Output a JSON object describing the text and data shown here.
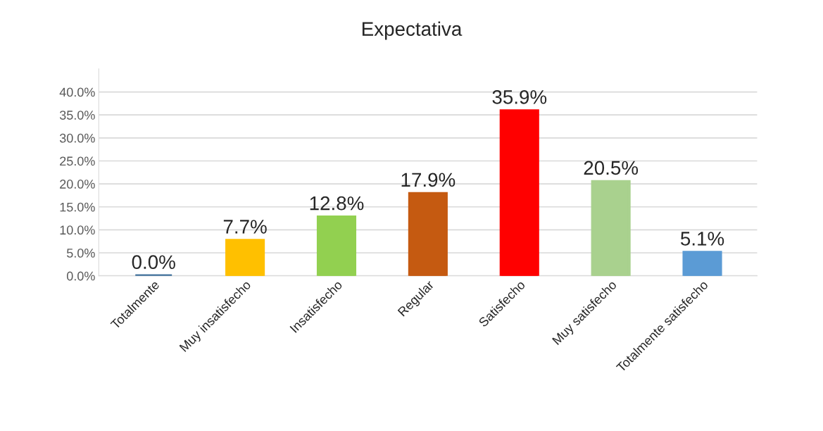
{
  "chart_data": {
    "type": "bar",
    "title": "Expectativa",
    "categories": [
      "Totalmente",
      "Muy insatisfecho",
      "Insatisfecho",
      "Regular",
      "Satisfecho",
      "Muy satisfecho",
      "Totalmente satisfecho"
    ],
    "values": [
      0,
      7.7,
      12.8,
      17.9,
      35.9,
      20.5,
      5.1
    ],
    "value_labels": [
      "0.0%",
      "7.7%",
      "12.8%",
      "17.9%",
      "35.9%",
      "20.5%",
      "5.1%"
    ],
    "colors": [
      "#41719c",
      "#ffc000",
      "#92d050",
      "#c55a11",
      "#ff0000",
      "#a9d18e",
      "#5b9bd5"
    ],
    "ylim": [
      0,
      45
    ],
    "yticks": [
      {
        "value": 0,
        "label": "0.0%"
      },
      {
        "value": 5,
        "label": "5.0%"
      },
      {
        "value": 10,
        "label": "10.0%"
      },
      {
        "value": 15,
        "label": "15.0%"
      },
      {
        "value": 20,
        "label": "20.0%"
      },
      {
        "value": 25,
        "label": "25.0%"
      },
      {
        "value": 30,
        "label": "30.0%"
      },
      {
        "value": 35,
        "label": "35.0%"
      },
      {
        "value": 40,
        "label": "40.0%"
      }
    ],
    "grid": "y"
  }
}
